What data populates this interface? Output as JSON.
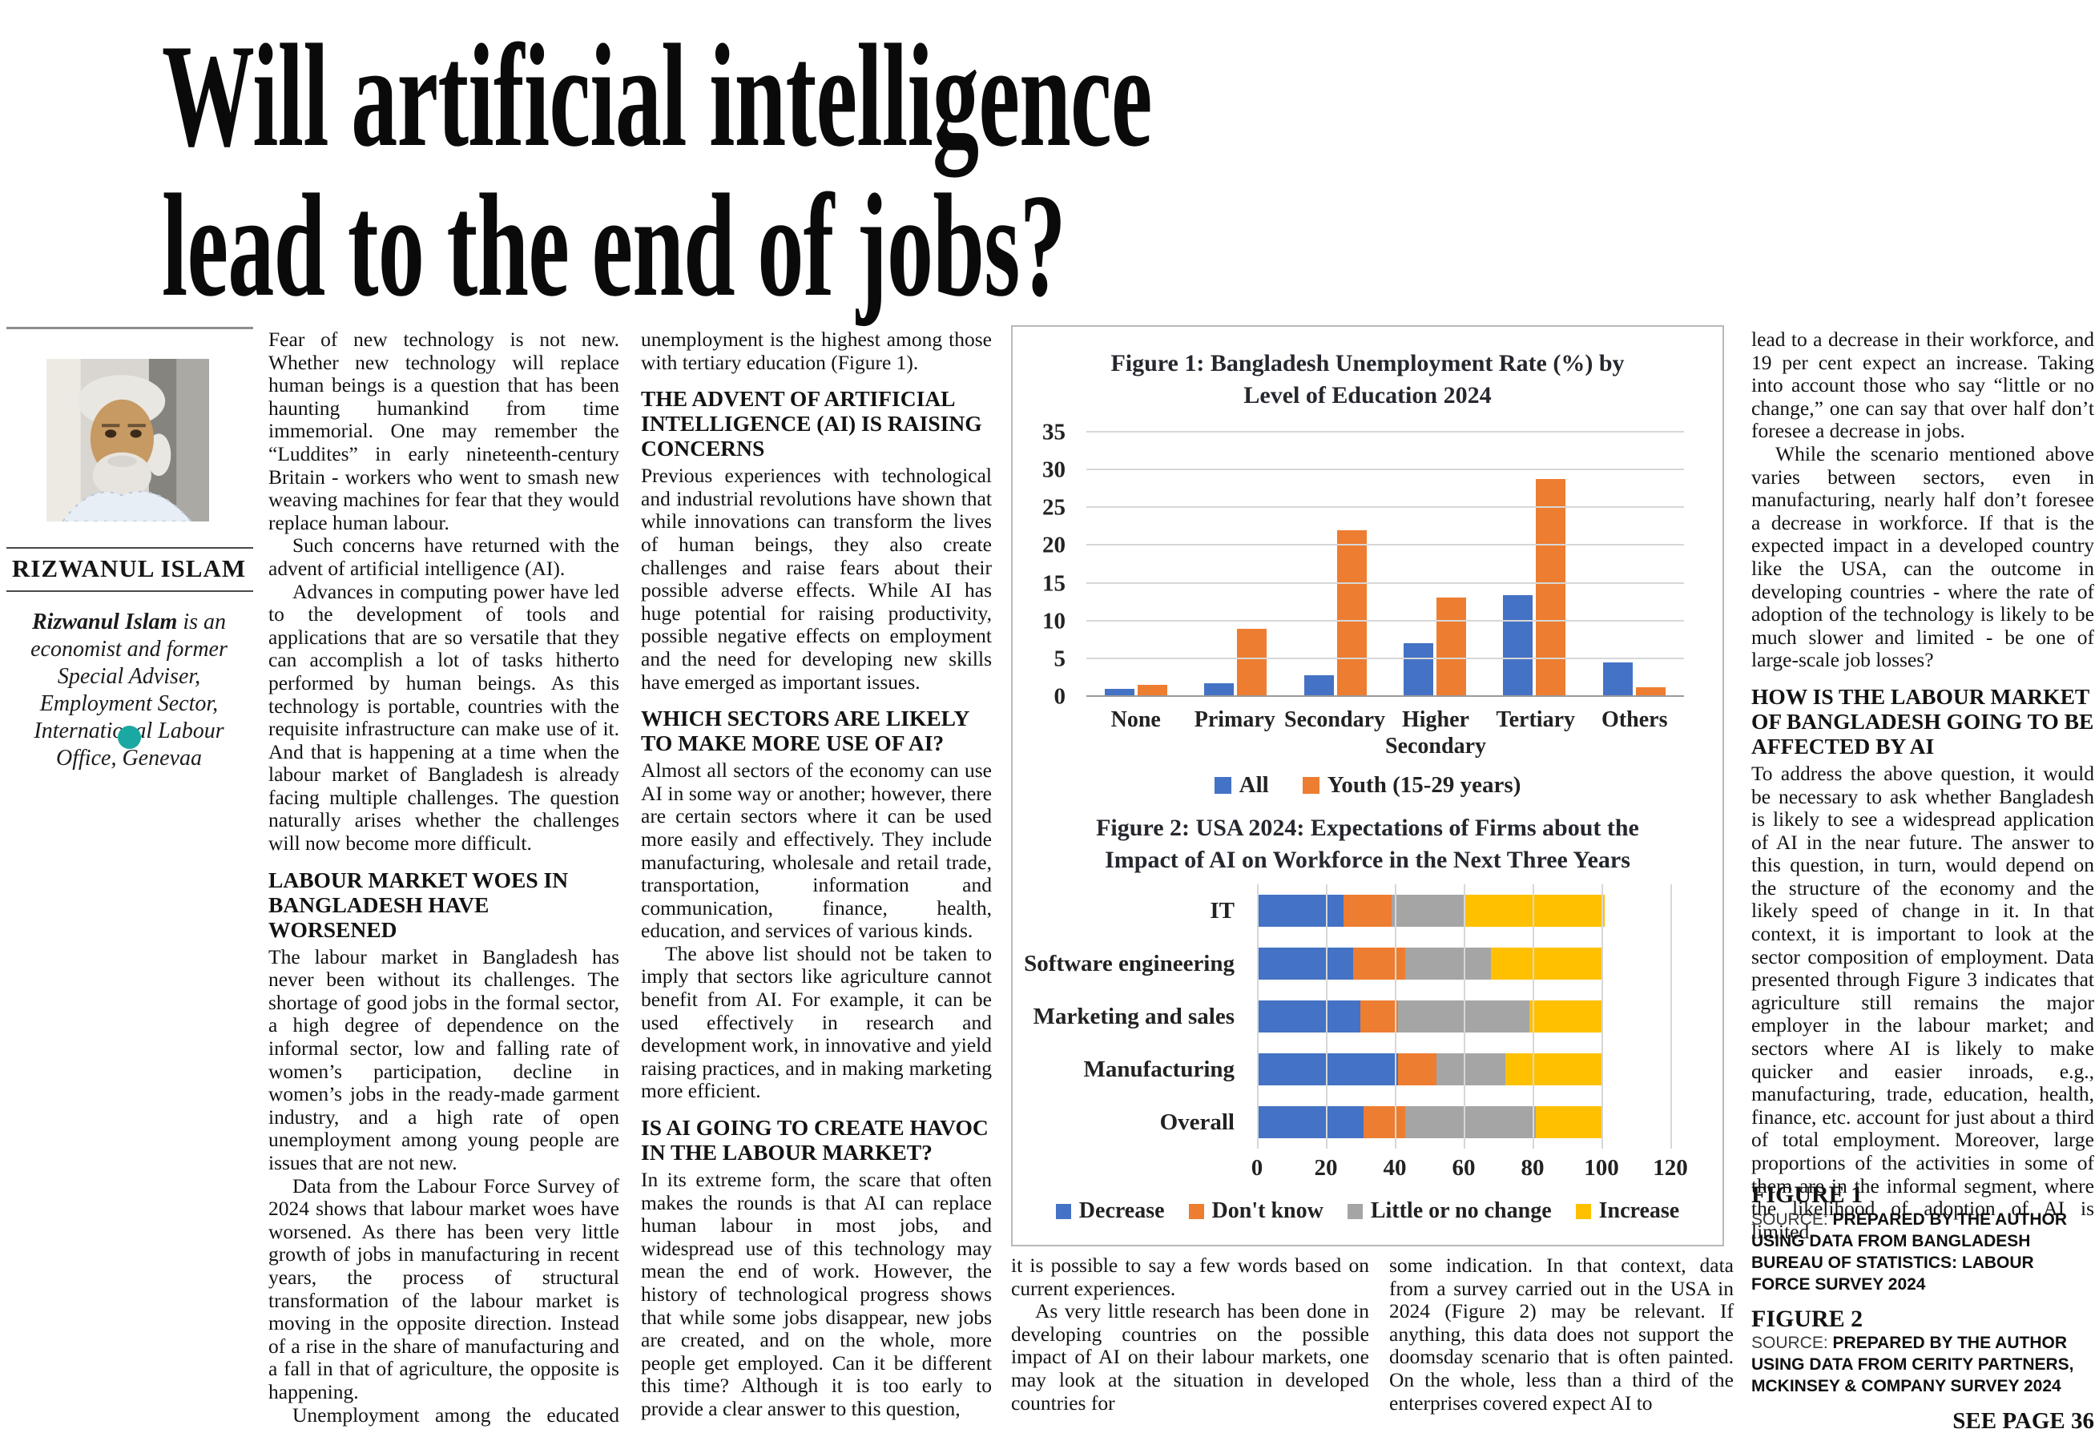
{
  "headline": {
    "line1": "Will artificial intelligence",
    "line2": "lead to the end of jobs?"
  },
  "author": {
    "name": "RIZWANUL ISLAM",
    "bio_name": "Rizwanul Islam",
    "bio_rest": " is an economist and former Special Adviser, Employment Sector, International Labour Office, Genevaa",
    "accent_color": "#1aa8a2"
  },
  "article": {
    "columns": {
      "col1": [
        {
          "t": "p",
          "text": "Fear of new technology is not new. Whether new technology will replace human beings is a question that has been haunting humankind from time immemorial. One may remember the “Luddites” in early nineteenth-century Britain - workers who went to smash new weaving machines for fear that they would replace human labour."
        },
        {
          "t": "p",
          "text": "Such concerns have returned with the advent of artificial intelligence (AI)."
        },
        {
          "t": "p",
          "text": "Advances in computing power have led to the development of tools and applications that are so versatile that they can accomplish a lot of tasks hitherto performed by human beings. As this technology is portable, countries with the requisite infrastructure can make use of it. And that is happening at a time when the labour market of Bangladesh is already facing multiple challenges. The question naturally arises whether the challenges will now become more difficult."
        },
        {
          "t": "h",
          "text": "LABOUR MARKET WOES IN BANGLADESH HAVE WORSENED"
        },
        {
          "t": "p",
          "text": "The labour market in Bangladesh has never been without its challenges. The shortage of good jobs in the formal sector, a high degree of dependence on the informal sector, low and falling rate of women’s participation, decline in women’s jobs in the ready-made garment industry, and a high rate of open unemployment among young people are issues that are not new."
        },
        {
          "t": "p",
          "text": "Data from the Labour Force Survey of 2024 shows that labour market woes have worsened. As there has been very little growth of jobs in manufacturing in recent years, the process of structural transformation of the labour market is moving in the opposite direction. Instead of a rise in the share of manufacturing and a fall in that of agriculture, the opposite is happening."
        },
        {
          "t": "p",
          "text": "Unemployment among the educated remains a major issue, and the rate of"
        }
      ],
      "col2": [
        {
          "t": "p",
          "text": "unemployment is the highest among those with tertiary education (Figure 1)."
        },
        {
          "t": "h",
          "text": "THE ADVENT OF ARTIFICIAL INTELLIGENCE (AI) IS RAISING CONCERNS"
        },
        {
          "t": "p",
          "text": "Previous experiences with technological and industrial revolutions have shown that while innovations can transform the lives of human beings, they also create challenges and raise fears about their possible adverse effects. While AI has huge potential for raising productivity, possible negative effects on employment and the need for developing new skills have emerged as important issues."
        },
        {
          "t": "h",
          "text": "WHICH SECTORS ARE LIKELY TO MAKE MORE USE OF AI?"
        },
        {
          "t": "p",
          "text": "Almost all sectors of the economy can use AI in some way or another; however, there are certain sectors where it can be used more easily and effectively. They include manufacturing, wholesale and retail trade, transportation, information and communication, finance, health, education, and services of various kinds."
        },
        {
          "t": "p",
          "text": "The above list should not be taken to imply that sectors like agriculture cannot benefit from AI. For example, it can be used effectively in research and development work, in innovative and yield raising practices, and in making marketing more efficient."
        },
        {
          "t": "h",
          "text": "IS AI GOING TO CREATE HAVOC IN THE LABOUR MARKET?"
        },
        {
          "t": "p",
          "text": "In its extreme form, the scare that often makes the rounds is that AI can replace human labour in most jobs, and widespread use of this technology may mean the end of work. However, the history of technological progress shows that while some jobs disappear, new jobs are created, and on the whole, more people get employed. Can it be different this time? Although it is too early to provide a clear answer to this question,"
        }
      ],
      "col3": [
        {
          "t": "p",
          "text": "it is possible to say a few words based on current experiences."
        },
        {
          "t": "p",
          "text": "As very little research has been done in developing countries on the possible impact of AI on their labour markets, one may look at the situation in developed countries for"
        }
      ],
      "col4": [
        {
          "t": "p",
          "text": "some indication. In that context, data from a survey carried out in the USA in 2024 (Figure 2) may be relevant. If anything, this data does not support the doomsday scenario that is often painted. On the whole, less than a third of the enterprises covered expect AI to"
        }
      ],
      "col5": [
        {
          "t": "p",
          "text": "lead to a decrease in their workforce, and 19 per cent expect an increase. Taking into account those who say “little or no change,” one can say that over half don’t foresee a decrease in jobs."
        },
        {
          "t": "p",
          "text": "While the scenario mentioned above varies between sectors, even in manufacturing, nearly half don’t foresee a decrease in workforce. If that is the expected impact in a developed country like the USA, can the outcome in developing countries - where the rate of adoption of the technology is likely to be much slower and limited - be one of large-scale job losses?"
        },
        {
          "t": "h",
          "text": "HOW IS THE LABOUR MARKET OF BANGLADESH GOING TO BE AFFECTED BY AI"
        },
        {
          "t": "p",
          "text": "To address the above question, it would be necessary to ask whether Bangladesh is likely to see a widespread application of AI in the near future. The answer to this question, in turn, would depend on the structure of the economy and the likely speed of change in it. In that context, it is important to look at the sector composition of employment. Data presented through Figure 3 indicates that agriculture still remains the major employer in the labour market; and sectors where AI is likely to make quicker and easier inroads, e.g., manufacturing, trade, education, health, finance, etc. account for just about a third of total employment. Moreover, large proportions of the activities in some of them are in the informal segment, where the likelihood of adoption of AI is limited."
        }
      ]
    }
  },
  "footer": {
    "fig1": {
      "label": "FIGURE 1",
      "source_label": "SOURCE: ",
      "source_text": "PREPARED BY THE AUTHOR USING DATA FROM BANGLADESH BUREAU OF STATISTICS: LABOUR FORCE SURVEY 2024"
    },
    "fig2": {
      "label": "FIGURE 2",
      "source_label": "SOURCE: ",
      "source_text": "PREPARED BY THE AUTHOR USING DATA FROM CERITY PARTNERS, MCKINSEY & COMPANY SURVEY 2024"
    },
    "see_page": "SEE PAGE 36"
  },
  "chart_data": [
    {
      "type": "bar",
      "title": "Figure 1: Bangladesh Unemployment Rate (%) by Level of Education 2024",
      "title_lines": [
        "Figure 1: Bangladesh Unemployment Rate (%) by",
        "Level of Education 2024"
      ],
      "categories": [
        "None",
        "Primary",
        "Secondary",
        "Higher Secondary",
        "Tertiary",
        "Others"
      ],
      "series": [
        {
          "name": "All",
          "color": "#4472C4",
          "values": [
            1.1,
            1.8,
            2.9,
            7.1,
            13.5,
            4.6
          ]
        },
        {
          "name": "Youth (15-29 years)",
          "color": "#ED7D31",
          "values": [
            1.6,
            9.0,
            22.1,
            13.2,
            28.8,
            1.3
          ]
        }
      ],
      "xlabel": "",
      "ylabel": "",
      "ylim": [
        0,
        35
      ],
      "ytick_step": 5,
      "grid": true,
      "legend_position": "bottom"
    },
    {
      "type": "stacked-hbar",
      "title": "Figure 2: USA 2024: Expectations of Firms about the Impact of AI on Workforce in the Next Three Years",
      "title_lines": [
        "Figure 2: USA 2024: Expectations of Firms about the",
        "Impact of AI on Workforce in the Next Three Years"
      ],
      "categories": [
        "IT",
        "Software engineering",
        "Marketing and sales",
        "Manufacturing",
        "Overall"
      ],
      "series": [
        {
          "name": "Decrease",
          "color": "#4472C4",
          "values": [
            25,
            28,
            30,
            41,
            31
          ]
        },
        {
          "name": "Don't know",
          "color": "#ED7D31",
          "values": [
            14,
            15,
            11,
            11,
            12
          ]
        },
        {
          "name": "Little or no change",
          "color": "#A5A5A5",
          "values": [
            21,
            25,
            38,
            20,
            38
          ]
        },
        {
          "name": "Increase",
          "color": "#FFC000",
          "values": [
            41,
            32,
            21,
            28,
            19
          ]
        }
      ],
      "xlim": [
        0,
        120
      ],
      "xtick_step": 20,
      "grid": true,
      "legend_position": "bottom"
    }
  ]
}
